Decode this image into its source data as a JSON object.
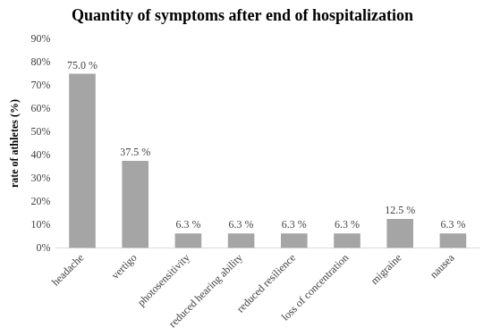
{
  "chart_data": {
    "type": "bar",
    "title": "Quantity of symptoms after end of hospitalization",
    "y_label": "rate of athletes (%)",
    "categories": [
      "headache",
      "vertigo",
      "photosensitivity",
      "reduced hearing ability",
      "reduced resilience",
      "loss of concentration",
      "migraine",
      "nausea"
    ],
    "values": [
      75.0,
      37.5,
      6.3,
      6.3,
      6.3,
      6.3,
      12.5,
      6.3
    ],
    "value_labels": [
      "75.0 %",
      "37.5 %",
      "6.3 %",
      "6.3 %",
      "6.3 %",
      "6.3 %",
      "12.5 %",
      "6.3 %"
    ],
    "data_labels": true,
    "color": "#a5a5a5",
    "ylim": [
      0,
      90
    ],
    "yticks": [
      {
        "value": 0,
        "label": "0%"
      },
      {
        "value": 10,
        "label": "10%"
      },
      {
        "value": 20,
        "label": "20%"
      },
      {
        "value": 30,
        "label": "30%"
      },
      {
        "value": 40,
        "label": "40%"
      },
      {
        "value": 50,
        "label": "50%"
      },
      {
        "value": 60,
        "label": "60%"
      },
      {
        "value": 70,
        "label": "70%"
      },
      {
        "value": 80,
        "label": "80%"
      },
      {
        "value": 90,
        "label": "90%"
      }
    ],
    "grid": false
  }
}
